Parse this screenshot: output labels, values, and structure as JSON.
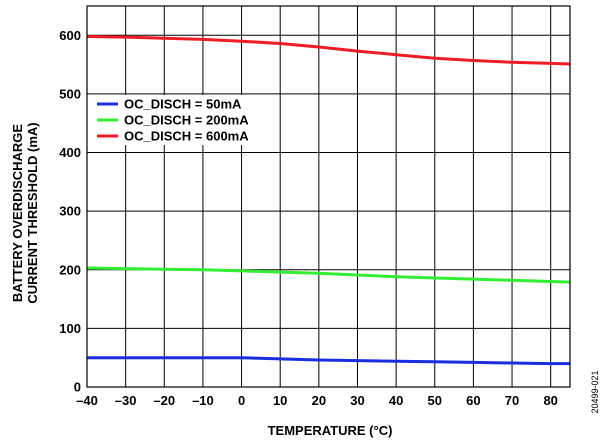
{
  "chart_data": {
    "type": "line",
    "xlabel": "TEMPERATURE (°C)",
    "ylabel_line1": "BATTERY OVERDISCHARGE",
    "ylabel_line2": "CURRENT THRESHOLD (mA)",
    "xlim": [
      -40,
      85
    ],
    "ylim": [
      0,
      650
    ],
    "xticks": [
      -40,
      -30,
      -20,
      -10,
      0,
      10,
      20,
      30,
      40,
      50,
      60,
      70,
      80
    ],
    "xtick_labels": [
      "–40",
      "–30",
      "–20",
      "–10",
      "0",
      "10",
      "20",
      "30",
      "40",
      "50",
      "60",
      "70",
      "80"
    ],
    "yticks": [
      0,
      100,
      200,
      300,
      400,
      500,
      600
    ],
    "grid": true,
    "legend_position": "top-left",
    "x": [
      -40,
      -30,
      -20,
      -10,
      0,
      10,
      20,
      30,
      40,
      50,
      60,
      70,
      80,
      85
    ],
    "series": [
      {
        "name": "OC_DISCH = 50mA",
        "color": "#1a2ee0",
        "values": [
          50,
          50,
          50,
          50,
          50,
          48,
          46,
          45,
          44,
          43,
          42,
          41,
          40,
          40
        ]
      },
      {
        "name": "OC_DISCH = 200mA",
        "color": "#33ee33",
        "values": [
          203,
          202,
          201,
          200,
          198,
          196,
          194,
          191,
          188,
          186,
          184,
          182,
          180,
          179
        ]
      },
      {
        "name": "OC_DISCH = 600mA",
        "color": "#ee1c24",
        "values": [
          598,
          597,
          595,
          593,
          590,
          586,
          580,
          573,
          567,
          561,
          557,
          554,
          552,
          551
        ]
      }
    ]
  },
  "figure_id": "20499-021"
}
